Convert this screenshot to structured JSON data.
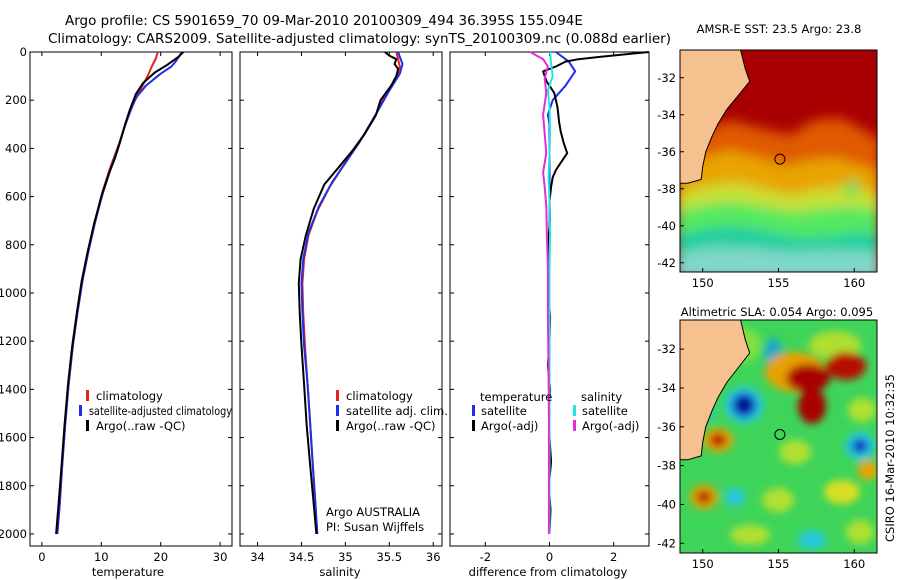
{
  "figure": {
    "title_line1": "Argo profile: CS 5901659_70 09-Mar-2010 20100309_494 36.395S 155.094E",
    "title_line2": "Climatology: CARS2009. Satellite-adjusted climatology: synTS_20100309.nc (0.088d earlier)",
    "side_label": "CSIRO 16-Mar-2010 10:32:35"
  },
  "colors": {
    "climatology": "#e8221c",
    "satellite": "#1f2fe6",
    "argo": "#000000",
    "sal_satellite": "#22e5e8",
    "sal_argo": "#e22ed6",
    "land": "#f6c08f"
  },
  "chart_data": [
    {
      "type": "line",
      "id": "temperature",
      "xlabel": "temperature",
      "xlim": [
        -2,
        32
      ],
      "ylim": [
        2050,
        0
      ],
      "xticks": [
        0,
        10,
        20,
        30
      ],
      "yticks": [
        0,
        200,
        400,
        600,
        800,
        1000,
        1200,
        1400,
        1600,
        1800,
        2000
      ],
      "legend": [
        "climatology",
        "satellite-adjusted climatology",
        "Argo(..raw -QC)"
      ],
      "series": [
        {
          "name": "climatology",
          "color": "#e8221c",
          "points": [
            [
              19.5,
              0
            ],
            [
              19.2,
              25
            ],
            [
              18.5,
              60
            ],
            [
              17.8,
              100
            ],
            [
              16.5,
              160
            ],
            [
              15.3,
              220
            ],
            [
              14.2,
              290
            ],
            [
              13,
              380
            ],
            [
              11.5,
              480
            ],
            [
              10.2,
              580
            ],
            [
              9,
              700
            ],
            [
              7.8,
              830
            ],
            [
              6.8,
              950
            ],
            [
              6.0,
              1080
            ],
            [
              5.2,
              1220
            ],
            [
              4.5,
              1380
            ],
            [
              3.9,
              1550
            ],
            [
              3.4,
              1720
            ],
            [
              3.0,
              1880
            ],
            [
              2.6,
              2000
            ]
          ]
        },
        {
          "name": "satellite-adjusted climatology",
          "color": "#1f2fe6",
          "points": [
            [
              23.5,
              0
            ],
            [
              23.2,
              15
            ],
            [
              22.5,
              40
            ],
            [
              21.8,
              60
            ],
            [
              20,
              90
            ],
            [
              17.5,
              140
            ],
            [
              15.8,
              190
            ],
            [
              14.8,
              250
            ],
            [
              13.8,
              320
            ],
            [
              12.8,
              400
            ],
            [
              11.5,
              490
            ],
            [
              10.2,
              590
            ],
            [
              9,
              700
            ],
            [
              7.9,
              820
            ],
            [
              6.9,
              940
            ],
            [
              6,
              1080
            ],
            [
              5.2,
              1220
            ],
            [
              4.5,
              1380
            ],
            [
              3.9,
              1550
            ],
            [
              3.4,
              1720
            ],
            [
              3,
              1880
            ],
            [
              2.6,
              2000
            ]
          ]
        },
        {
          "name": "Argo(..raw -QC)",
          "color": "#000000",
          "points": [
            [
              23.8,
              0
            ],
            [
              23,
              20
            ],
            [
              21,
              55
            ],
            [
              19,
              85
            ],
            [
              17,
              130
            ],
            [
              15.8,
              175
            ],
            [
              14.8,
              240
            ],
            [
              14,
              300
            ],
            [
              13.2,
              370
            ],
            [
              12.3,
              440
            ],
            [
              11.2,
              510
            ],
            [
              10,
              600
            ],
            [
              8.8,
              710
            ],
            [
              7.7,
              830
            ],
            [
              6.7,
              950
            ],
            [
              5.9,
              1080
            ],
            [
              5.1,
              1220
            ],
            [
              4.4,
              1380
            ],
            [
              3.8,
              1550
            ],
            [
              3.3,
              1720
            ],
            [
              2.8,
              1880
            ],
            [
              2.4,
              2000
            ]
          ]
        }
      ]
    },
    {
      "type": "line",
      "id": "salinity",
      "xlabel": "salinity",
      "xlim": [
        33.8,
        36.1
      ],
      "ylim": [
        2050,
        0
      ],
      "xticks": [
        34,
        34.5,
        35,
        35.5,
        36
      ],
      "yticks": [
        0,
        200,
        400,
        600,
        800,
        1000,
        1200,
        1400,
        1600,
        1800,
        2000
      ],
      "legend": [
        "climatology",
        "satellite adj. clim.",
        "Argo(..raw -QC)"
      ],
      "annotation_line1": "Argo AUSTRALIA",
      "annotation_line2": "PI: Susan Wijffels",
      "series": [
        {
          "name": "climatology",
          "color": "#e8221c",
          "points": [
            [
              35.58,
              0
            ],
            [
              35.6,
              30
            ],
            [
              35.62,
              60
            ],
            [
              35.58,
              110
            ],
            [
              35.45,
              180
            ],
            [
              35.32,
              280
            ],
            [
              35.15,
              380
            ],
            [
              34.98,
              470
            ],
            [
              34.82,
              560
            ],
            [
              34.68,
              660
            ],
            [
              34.58,
              760
            ],
            [
              34.53,
              860
            ],
            [
              34.51,
              960
            ],
            [
              34.52,
              1080
            ],
            [
              34.54,
              1220
            ],
            [
              34.57,
              1380
            ],
            [
              34.6,
              1550
            ],
            [
              34.63,
              1720
            ],
            [
              34.66,
              1880
            ],
            [
              34.68,
              2000
            ]
          ]
        },
        {
          "name": "satellite adj. clim.",
          "color": "#1f2fe6",
          "points": [
            [
              35.6,
              0
            ],
            [
              35.62,
              20
            ],
            [
              35.65,
              50
            ],
            [
              35.62,
              90
            ],
            [
              35.5,
              160
            ],
            [
              35.36,
              250
            ],
            [
              35.2,
              350
            ],
            [
              35.02,
              450
            ],
            [
              34.85,
              540
            ],
            [
              34.7,
              640
            ],
            [
              34.58,
              750
            ],
            [
              34.52,
              860
            ],
            [
              34.5,
              960
            ],
            [
              34.51,
              1080
            ],
            [
              34.53,
              1220
            ],
            [
              34.57,
              1380
            ],
            [
              34.6,
              1550
            ],
            [
              34.63,
              1720
            ],
            [
              34.66,
              1880
            ],
            [
              34.68,
              2000
            ]
          ]
        },
        {
          "name": "Argo(..raw -QC)",
          "color": "#000000",
          "points": [
            [
              35.45,
              0
            ],
            [
              35.5,
              15
            ],
            [
              35.58,
              30
            ],
            [
              35.56,
              50
            ],
            [
              35.6,
              70
            ],
            [
              35.58,
              100
            ],
            [
              35.52,
              140
            ],
            [
              35.4,
              200
            ],
            [
              35.35,
              260
            ],
            [
              35.22,
              340
            ],
            [
              35.08,
              410
            ],
            [
              34.92,
              480
            ],
            [
              34.76,
              550
            ],
            [
              34.64,
              650
            ],
            [
              34.55,
              760
            ],
            [
              34.49,
              860
            ],
            [
              34.47,
              960
            ],
            [
              34.48,
              1080
            ],
            [
              34.5,
              1220
            ],
            [
              34.53,
              1380
            ],
            [
              34.56,
              1550
            ],
            [
              34.6,
              1720
            ],
            [
              34.64,
              1880
            ],
            [
              34.67,
              2000
            ]
          ]
        }
      ]
    },
    {
      "type": "line",
      "id": "difference",
      "xlabel": "difference from climatology",
      "xlim": [
        -3.1,
        3.1
      ],
      "ylim": [
        2050,
        0
      ],
      "xticks": [
        -2,
        0,
        2
      ],
      "yticks": [
        0,
        200,
        400,
        600,
        800,
        1000,
        1200,
        1400,
        1600,
        1800,
        2000
      ],
      "legend_left_title": "temperature",
      "legend_right_title": "salinity",
      "legend_left": [
        "satellite",
        "Argo(-adj)"
      ],
      "legend_right": [
        "satellite",
        "Argo(-adj)"
      ],
      "series": [
        {
          "name": "temperature satellite",
          "color": "#1f2fe6",
          "points": [
            [
              0.2,
              0
            ],
            [
              0.6,
              40
            ],
            [
              0.8,
              80
            ],
            [
              0.5,
              140
            ],
            [
              0.1,
              200
            ],
            [
              -0.05,
              260
            ],
            [
              0,
              300
            ],
            [
              0,
              400
            ],
            [
              0,
              500
            ],
            [
              0,
              700
            ],
            [
              0,
              1000
            ],
            [
              0,
              1500
            ],
            [
              0,
              2000
            ]
          ]
        },
        {
          "name": "temperature Argo(-adj)",
          "color": "#000000",
          "points": [
            [
              3.1,
              0
            ],
            [
              1.6,
              20
            ],
            [
              0.9,
              30
            ],
            [
              0.5,
              40
            ],
            [
              0.2,
              60
            ],
            [
              -0.2,
              80
            ],
            [
              -0.1,
              120
            ],
            [
              0.15,
              170
            ],
            [
              0.25,
              230
            ],
            [
              0.3,
              290
            ],
            [
              0.35,
              330
            ],
            [
              0.45,
              380
            ],
            [
              0.55,
              420
            ],
            [
              0.35,
              460
            ],
            [
              0.2,
              490
            ],
            [
              0.1,
              520
            ],
            [
              0.05,
              560
            ],
            [
              0,
              620
            ],
            [
              0.02,
              700
            ],
            [
              -0.05,
              800
            ],
            [
              0,
              900
            ],
            [
              -0.03,
              1000
            ],
            [
              0.02,
              1100
            ],
            [
              0,
              1200
            ],
            [
              -0.05,
              1300
            ],
            [
              0.02,
              1400
            ],
            [
              -0.02,
              1500
            ],
            [
              0,
              1600
            ],
            [
              0.05,
              1700
            ],
            [
              -0.02,
              1800
            ],
            [
              0.03,
              1900
            ],
            [
              0,
              2000
            ]
          ]
        },
        {
          "name": "salinity satellite",
          "color": "#22e5e8",
          "points": [
            [
              0.02,
              0
            ],
            [
              0.05,
              50
            ],
            [
              0.1,
              100
            ],
            [
              -0.05,
              160
            ],
            [
              0,
              230
            ],
            [
              0.02,
              320
            ],
            [
              0,
              420
            ],
            [
              -0.03,
              520
            ],
            [
              0,
              620
            ],
            [
              0.02,
              750
            ],
            [
              0,
              900
            ],
            [
              0,
              1100
            ],
            [
              0,
              1400
            ],
            [
              0,
              1700
            ],
            [
              0,
              2000
            ]
          ]
        },
        {
          "name": "salinity Argo(-adj)",
          "color": "#e22ed6",
          "points": [
            [
              -0.6,
              0
            ],
            [
              -0.2,
              30
            ],
            [
              -0.05,
              60
            ],
            [
              -0.15,
              110
            ],
            [
              -0.1,
              170
            ],
            [
              -0.2,
              260
            ],
            [
              -0.15,
              340
            ],
            [
              -0.1,
              420
            ],
            [
              -0.2,
              500
            ],
            [
              -0.15,
              560
            ],
            [
              -0.1,
              640
            ],
            [
              -0.08,
              760
            ],
            [
              -0.05,
              900
            ],
            [
              -0.05,
              1100
            ],
            [
              -0.03,
              1300
            ],
            [
              -0.02,
              1500
            ],
            [
              -0.02,
              1700
            ],
            [
              -0.02,
              1900
            ],
            [
              -0.02,
              2000
            ]
          ]
        }
      ]
    },
    {
      "type": "heatmap",
      "id": "sst-map",
      "title": "AMSR-E SST: 23.5 Argo: 23.8",
      "xlim": [
        148.5,
        161.5
      ],
      "ylim": [
        -42.5,
        -30.5
      ],
      "xticks": [
        150,
        155,
        160
      ],
      "yticks": [
        -32,
        -34,
        -36,
        -38,
        -40,
        -42
      ],
      "profile_location": [
        155.094,
        -36.395
      ],
      "land_edge": [
        [
          148.5,
          -30.5
        ],
        [
          152.5,
          -30.5
        ],
        [
          152.8,
          -31.5
        ],
        [
          153.1,
          -32.2
        ],
        [
          152.3,
          -33.0
        ],
        [
          151.6,
          -33.7
        ],
        [
          151.0,
          -34.5
        ],
        [
          150.6,
          -35.2
        ],
        [
          150.2,
          -36.0
        ],
        [
          150.0,
          -36.8
        ],
        [
          149.9,
          -37.5
        ],
        [
          149.0,
          -37.7
        ],
        [
          148.5,
          -37.7
        ]
      ]
    },
    {
      "type": "heatmap",
      "id": "sla-map",
      "title": "Altimetric SLA: 0.054 Argo: 0.095",
      "xlim": [
        148.5,
        161.5
      ],
      "ylim": [
        -42.5,
        -30.5
      ],
      "xticks": [
        150,
        155,
        160
      ],
      "yticks": [
        -32,
        -34,
        -36,
        -38,
        -40,
        -42
      ],
      "profile_location": [
        155.094,
        -36.395
      ],
      "land_edge": [
        [
          148.5,
          -30.5
        ],
        [
          152.5,
          -30.5
        ],
        [
          152.8,
          -31.5
        ],
        [
          153.1,
          -32.2
        ],
        [
          152.3,
          -33.0
        ],
        [
          151.6,
          -33.7
        ],
        [
          151.0,
          -34.5
        ],
        [
          150.6,
          -35.2
        ],
        [
          150.2,
          -36.0
        ],
        [
          150.0,
          -36.8
        ],
        [
          149.9,
          -37.5
        ],
        [
          149.0,
          -37.7
        ],
        [
          148.5,
          -37.7
        ]
      ]
    }
  ]
}
